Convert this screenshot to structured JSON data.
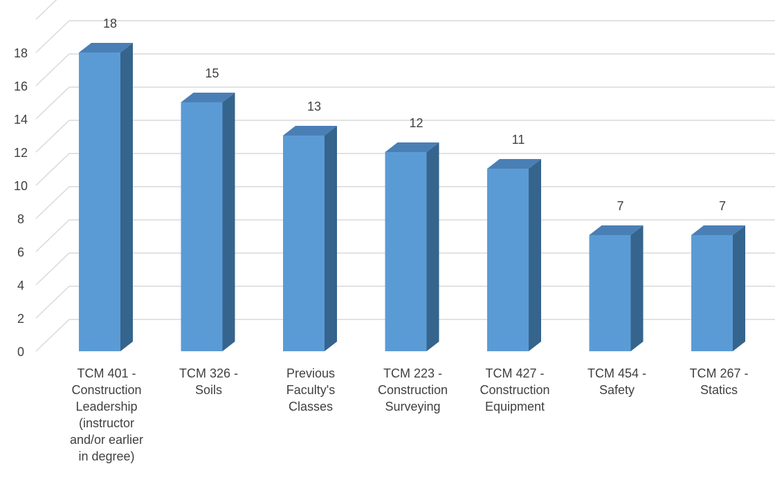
{
  "chart_data": {
    "type": "bar",
    "style": "3d-column",
    "categories": [
      "TCM 401 -\nConstruction\nLeadership\n(instructor\nand/or earlier\nin degree)",
      "TCM 326 -\nSoils",
      "Previous\nFaculty's\nClasses",
      "TCM 223 -\nConstruction\nSurveying",
      "TCM 427 -\nConstruction\nEquipment",
      "TCM 454 -\nSafety",
      "TCM 267 -\nStatics"
    ],
    "values": [
      18,
      15,
      13,
      12,
      11,
      7,
      7
    ],
    "data_labels": [
      "18",
      "15",
      "13",
      "12",
      "11",
      "7",
      "7"
    ],
    "title": "",
    "xlabel": "",
    "ylabel": "",
    "ylim": [
      0,
      18
    ],
    "y_ticks": [
      "0",
      "2",
      "4",
      "6",
      "8",
      "10",
      "12",
      "14",
      "16",
      "18"
    ],
    "grid": true,
    "legend": "none",
    "colors": {
      "front": "#5b9bd5",
      "side": "#35648d",
      "top": "#4a7fb6",
      "grid": "#d9d9d9",
      "text": "#404040"
    }
  }
}
